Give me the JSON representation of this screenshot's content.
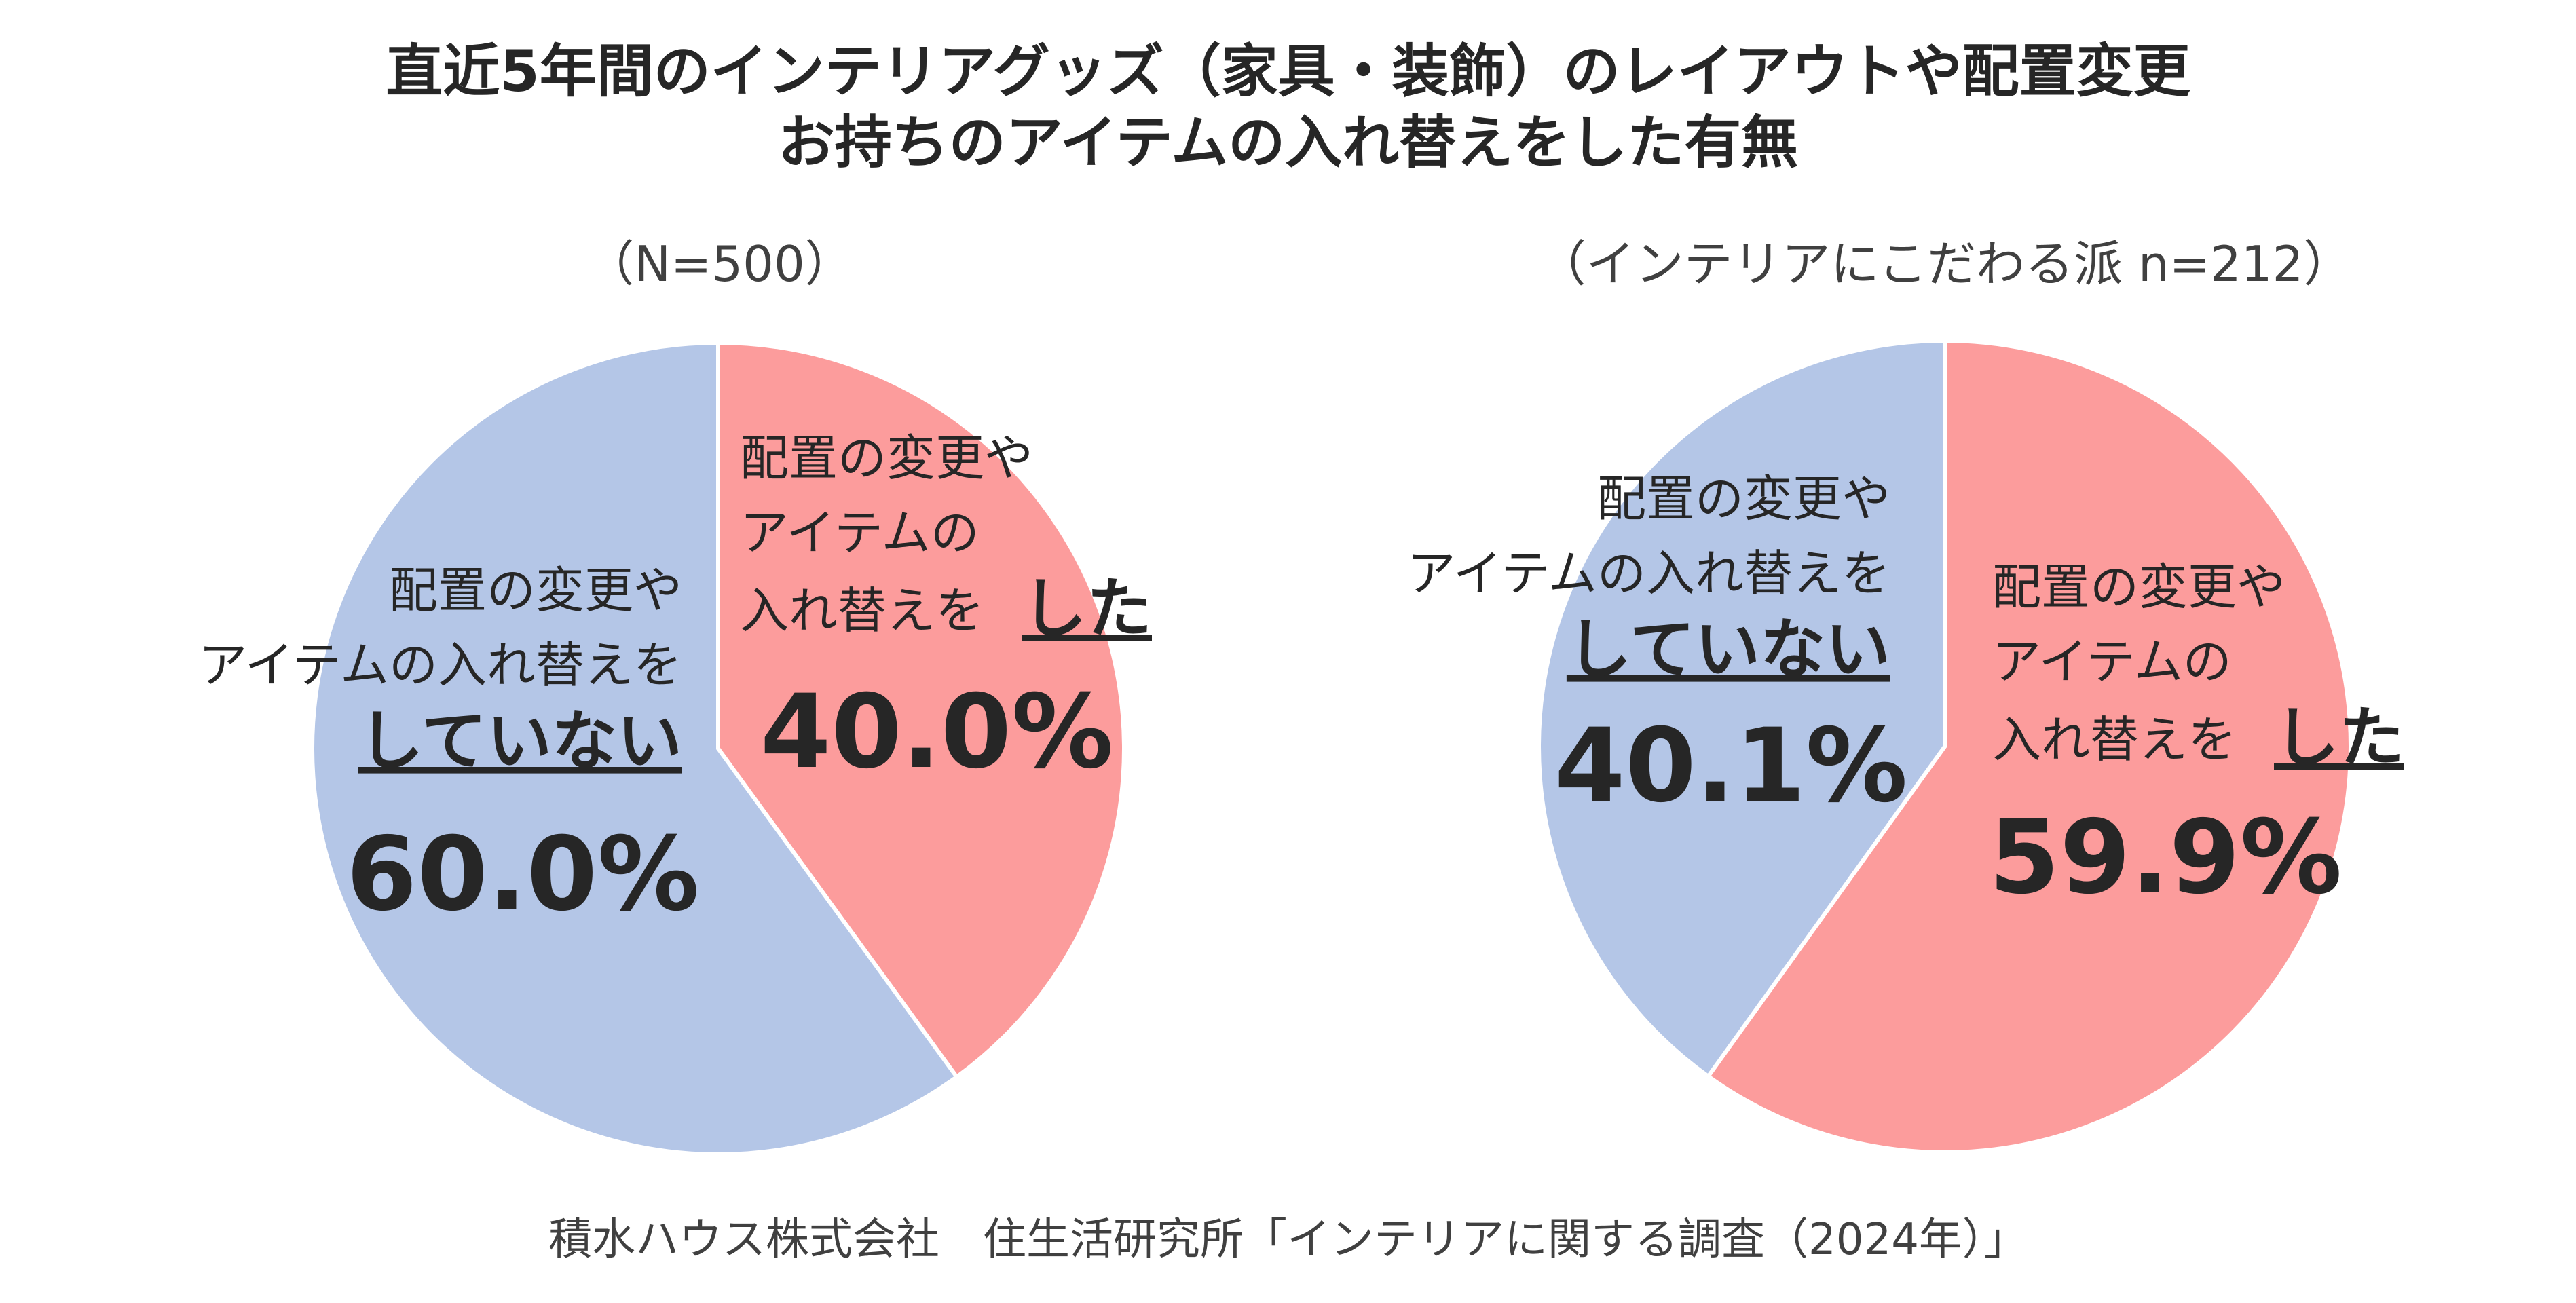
{
  "title": {
    "line1": "直近5年間のインテリアグッズ（家具・装飾）のレイアウトや配置変更",
    "line2": "お持ちのアイテムの入れ替えをした有無"
  },
  "source": "積水ハウス株式会社　住生活研究所「インテリアに関する調査（2024年）」",
  "colors": {
    "did": "#fc9c9c",
    "didnot": "#b4c6e7",
    "text": "#262626"
  },
  "chart_data": [
    {
      "type": "pie",
      "subtitle": "（N=500）",
      "slices": [
        {
          "key": "did",
          "value": 40.0,
          "pct_label": "40.0%",
          "label_lines": [
            "配置の変更や",
            "アイテムの",
            "入れ替えを"
          ],
          "emphasis": "した"
        },
        {
          "key": "didnot",
          "value": 60.0,
          "pct_label": "60.0%",
          "label_lines": [
            "配置の変更や",
            "アイテムの入れ替えを"
          ],
          "emphasis": "していない"
        }
      ]
    },
    {
      "type": "pie",
      "subtitle": "（インテリアにこだわる派 n=212）",
      "slices": [
        {
          "key": "did",
          "value": 59.9,
          "pct_label": "59.9%",
          "label_lines": [
            "配置の変更や",
            "アイテムの",
            "入れ替えを"
          ],
          "emphasis": "した"
        },
        {
          "key": "didnot",
          "value": 40.1,
          "pct_label": "40.1%",
          "label_lines": [
            "配置の変更や",
            "アイテムの入れ替えを"
          ],
          "emphasis": "していない"
        }
      ]
    }
  ]
}
